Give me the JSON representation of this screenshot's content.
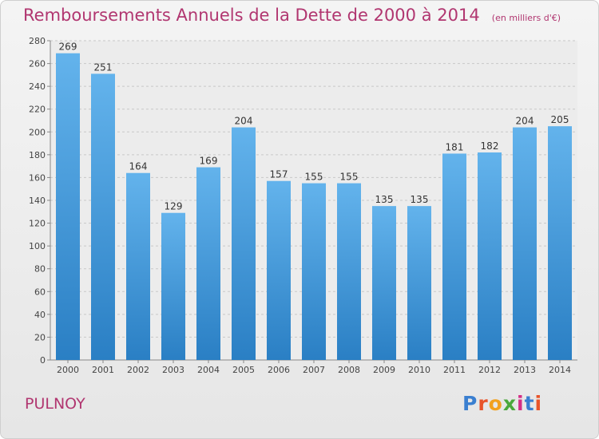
{
  "title": "Remboursements Annuels de la Dette de 2000 à 2014",
  "subtitle": "(en milliers d'€)",
  "place": "PULNOY",
  "logo": {
    "text": "Proxiti",
    "colors": [
      "#3a7fd0",
      "#e8542a",
      "#f2a11e",
      "#4aa83c",
      "#d42f86",
      "#3a7fd0",
      "#e8542a"
    ]
  },
  "chart_data": {
    "type": "bar",
    "categories": [
      "2000",
      "2001",
      "2002",
      "2003",
      "2004",
      "2005",
      "2006",
      "2007",
      "2008",
      "2009",
      "2010",
      "2011",
      "2012",
      "2013",
      "2014"
    ],
    "values": [
      269,
      251,
      164,
      129,
      169,
      204,
      157,
      155,
      155,
      135,
      135,
      181,
      182,
      204,
      205
    ],
    "data_labels": [
      "269",
      "251",
      "164",
      "129",
      "169",
      "204",
      "157",
      "155",
      "155",
      "135",
      "135",
      "181",
      "182",
      "204",
      "205"
    ],
    "ylim": [
      0,
      280
    ],
    "yticks": [
      0,
      20,
      40,
      60,
      80,
      100,
      120,
      140,
      160,
      180,
      200,
      220,
      240,
      260,
      280
    ],
    "grid": true,
    "bar_color_top": "#63b3ec",
    "bar_color_bottom": "#2a7fc4"
  }
}
